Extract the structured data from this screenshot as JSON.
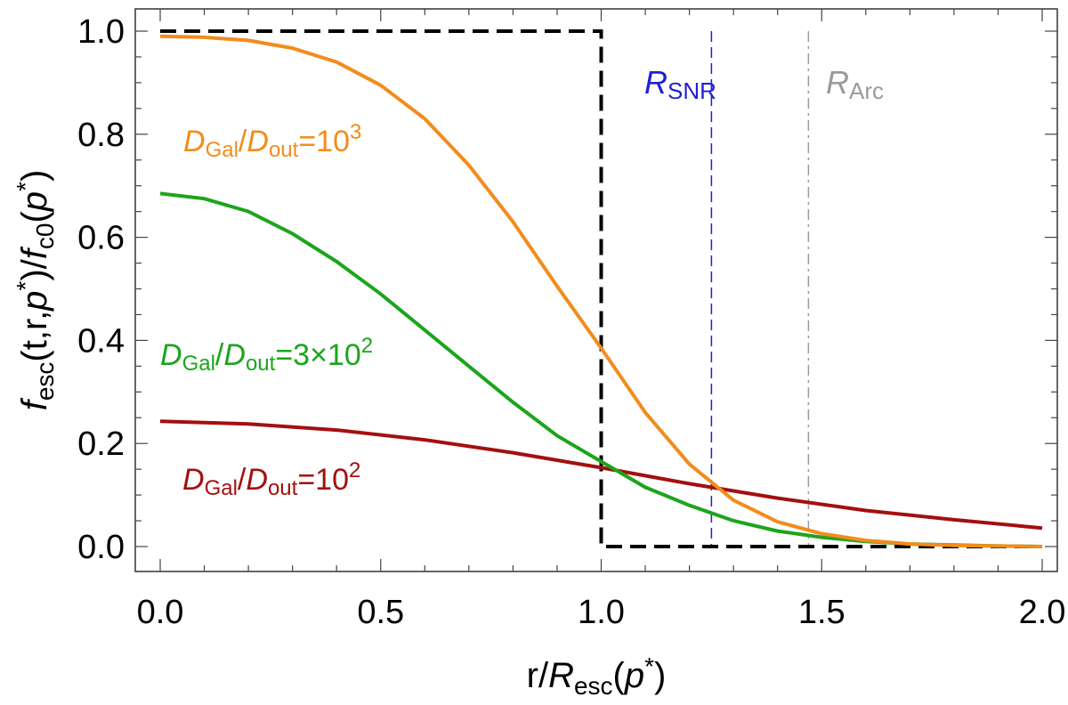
{
  "chart_data": {
    "type": "line",
    "xlabel": {
      "prefix": "r/",
      "var": "R",
      "sub": "esc",
      "open": "(",
      "arg": "p",
      "sup": "*",
      "close": ")"
    },
    "ylabel": {
      "f1": "f",
      "sub1": "esc",
      "mid": "(t,r,",
      "p1": "p",
      "sup1": "*",
      "midclose": ")/",
      "f2": "f",
      "sub2": "c0",
      "open": "(",
      "p2": "p",
      "sup2": "*",
      "close": ")"
    },
    "xlim": [
      0.0,
      2.0
    ],
    "ylim": [
      0.0,
      1.0
    ],
    "x_ticks": [
      "0.0",
      "0.5",
      "1.0",
      "1.5",
      "2.0"
    ],
    "y_ticks": [
      "0.0",
      "0.2",
      "0.4",
      "0.6",
      "0.8",
      "1.0"
    ],
    "series": [
      {
        "label": {
          "d1": "D",
          "s1": "Gal",
          "slash": "/",
          "d2": "D",
          "s2": "out",
          "eq": "=10",
          "sup": "3"
        },
        "color": "#f28c1c",
        "x": [
          0.0,
          0.1,
          0.2,
          0.3,
          0.4,
          0.5,
          0.6,
          0.7,
          0.8,
          0.9,
          1.0,
          1.1,
          1.2,
          1.3,
          1.4,
          1.5,
          1.6,
          1.7,
          1.8,
          1.9,
          2.0
        ],
        "y": [
          0.99,
          0.988,
          0.982,
          0.967,
          0.94,
          0.895,
          0.83,
          0.74,
          0.63,
          0.505,
          0.385,
          0.26,
          0.16,
          0.09,
          0.048,
          0.025,
          0.012,
          0.005,
          0.002,
          0.001,
          0.0
        ]
      },
      {
        "label": {
          "d1": "D",
          "s1": "Gal",
          "slash": "/",
          "d2": "D",
          "s2": "out",
          "eq": "=3×10",
          "sup": "2"
        },
        "color": "#1ca51c",
        "x": [
          0.0,
          0.1,
          0.2,
          0.3,
          0.4,
          0.5,
          0.6,
          0.7,
          0.8,
          0.9,
          1.0,
          1.1,
          1.2,
          1.3,
          1.4,
          1.5,
          1.6,
          1.7,
          1.8,
          1.9,
          2.0
        ],
        "y": [
          0.685,
          0.675,
          0.65,
          0.607,
          0.553,
          0.49,
          0.42,
          0.35,
          0.28,
          0.215,
          0.165,
          0.115,
          0.08,
          0.05,
          0.03,
          0.018,
          0.01,
          0.005,
          0.003,
          0.001,
          0.0
        ]
      },
      {
        "label": {
          "d1": "D",
          "s1": "Gal",
          "slash": "/",
          "d2": "D",
          "s2": "out",
          "eq": "=10",
          "sup": "2"
        },
        "color": "#a40f0f",
        "x": [
          0.0,
          0.2,
          0.4,
          0.6,
          0.8,
          1.0,
          1.2,
          1.4,
          1.6,
          1.8,
          2.0
        ],
        "y": [
          0.243,
          0.238,
          0.226,
          0.207,
          0.182,
          0.153,
          0.122,
          0.094,
          0.07,
          0.052,
          0.036
        ]
      },
      {
        "label": null,
        "style": "dashed-step",
        "color": "#000000",
        "x": [
          0.0,
          1.0,
          1.0,
          2.0
        ],
        "y": [
          1.0,
          1.0,
          0.0,
          0.0
        ]
      }
    ],
    "vlines": [
      {
        "x": 1.25,
        "color": "#1f1fd6",
        "style": "dashed",
        "label": {
          "var": "R",
          "sub": "SNR"
        }
      },
      {
        "x": 1.47,
        "color": "#9a9a9a",
        "style": "dashdot",
        "label": {
          "var": "R",
          "sub": "Arc"
        }
      }
    ]
  }
}
